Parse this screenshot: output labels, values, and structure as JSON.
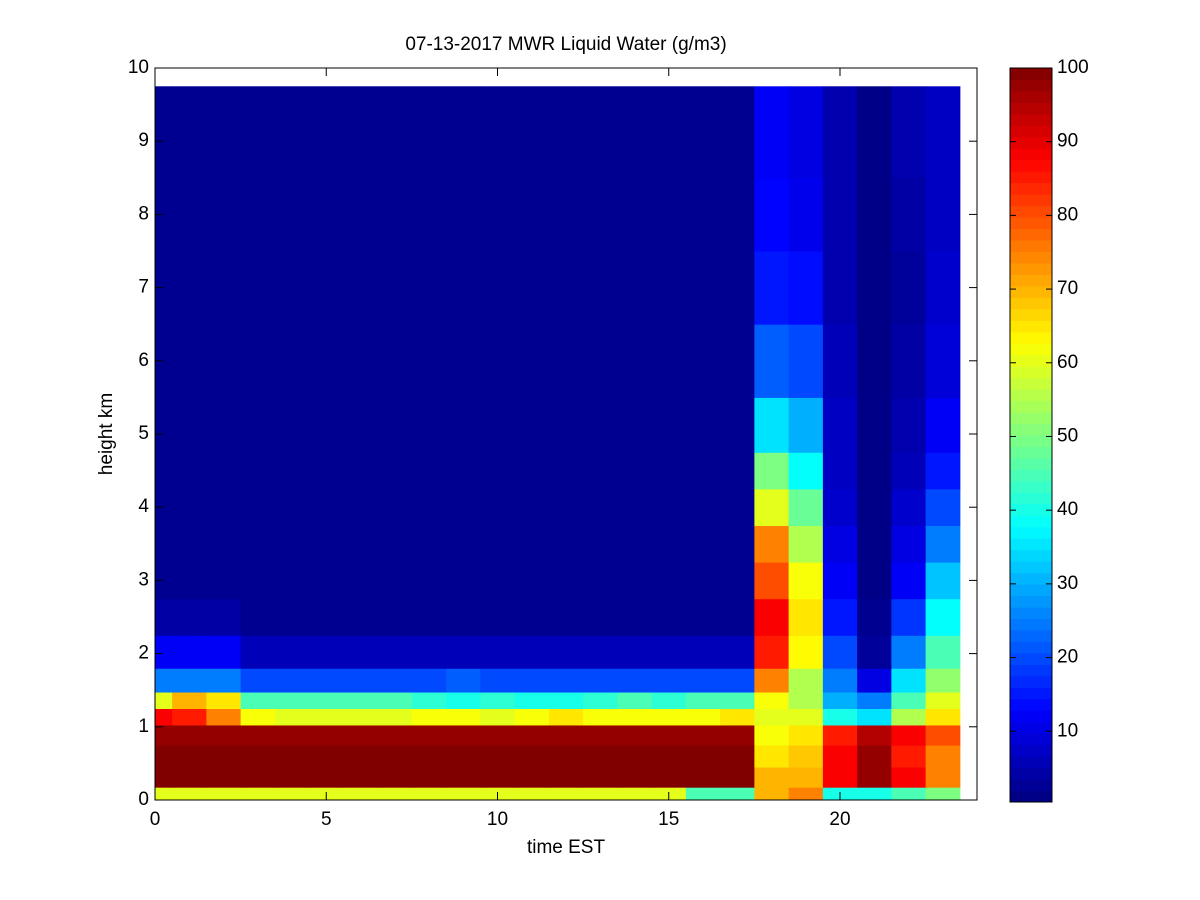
{
  "chart_data": {
    "type": "heatmap",
    "title": "07-13-2017 MWR Liquid Water (g/m3)",
    "x_label": "time EST",
    "y_label": "height km",
    "x": [
      0,
      1,
      2,
      3,
      4,
      5,
      6,
      7,
      8,
      9,
      10,
      11,
      12,
      13,
      14,
      15,
      16,
      17,
      18,
      19,
      20,
      21,
      22,
      23
    ],
    "y": [
      0.05,
      0.3,
      0.6,
      0.9,
      1.15,
      1.35,
      1.6,
      2.0,
      2.5,
      3.0,
      3.5,
      4.0,
      4.5,
      5.0,
      6.0,
      7.0,
      8.0,
      9.0,
      9.5
    ],
    "z": [
      [
        60,
        60,
        60,
        60,
        60,
        60,
        60,
        60,
        60,
        60,
        60,
        60,
        60,
        60,
        60,
        60,
        45,
        45,
        70,
        75,
        40,
        40,
        45,
        50
      ],
      [
        100,
        100,
        100,
        100,
        100,
        100,
        100,
        100,
        100,
        100,
        100,
        100,
        100,
        100,
        100,
        100,
        100,
        100,
        70,
        70,
        88,
        98,
        88,
        75
      ],
      [
        100,
        100,
        100,
        100,
        100,
        100,
        100,
        100,
        100,
        100,
        100,
        100,
        100,
        100,
        100,
        100,
        100,
        100,
        65,
        68,
        88,
        98,
        85,
        75
      ],
      [
        98,
        98,
        98,
        98,
        98,
        98,
        98,
        98,
        98,
        98,
        98,
        98,
        98,
        98,
        98,
        98,
        98,
        98,
        62,
        65,
        85,
        95,
        88,
        80
      ],
      [
        88,
        85,
        75,
        62,
        60,
        60,
        60,
        60,
        62,
        62,
        60,
        62,
        65,
        62,
        62,
        62,
        62,
        65,
        60,
        60,
        40,
        35,
        55,
        65
      ],
      [
        60,
        70,
        65,
        45,
        45,
        45,
        45,
        45,
        42,
        40,
        42,
        40,
        40,
        42,
        45,
        42,
        45,
        45,
        62,
        55,
        30,
        25,
        45,
        60
      ],
      [
        25,
        25,
        25,
        20,
        20,
        20,
        20,
        20,
        20,
        22,
        20,
        20,
        20,
        20,
        20,
        20,
        20,
        20,
        75,
        55,
        25,
        10,
        35,
        52
      ],
      [
        12,
        12,
        12,
        6,
        6,
        6,
        6,
        6,
        6,
        6,
        6,
        6,
        6,
        6,
        6,
        6,
        6,
        6,
        85,
        63,
        20,
        3,
        25,
        45
      ],
      [
        4,
        4,
        4,
        2,
        2,
        2,
        2,
        2,
        2,
        2,
        2,
        2,
        2,
        2,
        2,
        2,
        2,
        2,
        88,
        65,
        15,
        2,
        18,
        38
      ],
      [
        2,
        2,
        2,
        2,
        2,
        2,
        2,
        2,
        2,
        2,
        2,
        2,
        2,
        2,
        2,
        2,
        2,
        2,
        80,
        62,
        12,
        1,
        12,
        32
      ],
      [
        2,
        2,
        2,
        2,
        2,
        2,
        2,
        2,
        2,
        2,
        2,
        2,
        2,
        2,
        2,
        2,
        2,
        2,
        75,
        55,
        10,
        1,
        10,
        25
      ],
      [
        2,
        2,
        2,
        2,
        2,
        2,
        2,
        2,
        2,
        2,
        2,
        2,
        2,
        2,
        2,
        2,
        2,
        2,
        60,
        48,
        8,
        1,
        8,
        20
      ],
      [
        2,
        2,
        2,
        2,
        2,
        2,
        2,
        2,
        2,
        2,
        2,
        2,
        2,
        2,
        2,
        2,
        2,
        2,
        50,
        38,
        7,
        1,
        6,
        15
      ],
      [
        2,
        2,
        2,
        2,
        2,
        2,
        2,
        2,
        2,
        2,
        2,
        2,
        2,
        2,
        2,
        2,
        2,
        2,
        35,
        30,
        7,
        1,
        5,
        12
      ],
      [
        2,
        2,
        2,
        2,
        2,
        2,
        2,
        2,
        2,
        2,
        2,
        2,
        2,
        2,
        2,
        2,
        2,
        2,
        22,
        20,
        6,
        1,
        4,
        9
      ],
      [
        2,
        2,
        2,
        2,
        2,
        2,
        2,
        2,
        2,
        2,
        2,
        2,
        2,
        2,
        2,
        2,
        2,
        2,
        15,
        14,
        5,
        1,
        3,
        8
      ],
      [
        2,
        2,
        2,
        2,
        2,
        2,
        2,
        2,
        2,
        2,
        2,
        2,
        2,
        2,
        2,
        2,
        2,
        2,
        13,
        11,
        5,
        1,
        4,
        7
      ],
      [
        2,
        2,
        2,
        2,
        2,
        2,
        2,
        2,
        2,
        2,
        2,
        2,
        2,
        2,
        2,
        2,
        2,
        2,
        12,
        10,
        5,
        1,
        5,
        7
      ],
      [
        2,
        2,
        2,
        2,
        2,
        2,
        2,
        2,
        2,
        2,
        2,
        2,
        2,
        2,
        2,
        2,
        2,
        2,
        12,
        10,
        5,
        1,
        5,
        7
      ]
    ],
    "xlim": [
      0,
      24
    ],
    "xticks": [
      0,
      5,
      10,
      15,
      20
    ],
    "ylim": [
      0,
      10
    ],
    "yticks": [
      0,
      1,
      2,
      3,
      4,
      5,
      6,
      7,
      8,
      9,
      10
    ],
    "colormap": "jet",
    "clim": [
      0.4,
      100
    ],
    "cticks": [
      10,
      20,
      30,
      40,
      50,
      60,
      70,
      80,
      90,
      100
    ]
  }
}
